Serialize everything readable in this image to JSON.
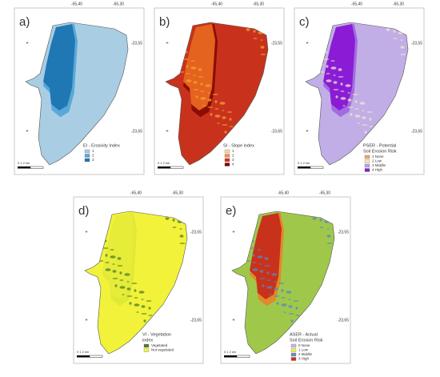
{
  "panels": [
    {
      "label": "a)",
      "top_coords": [
        "-65,40",
        "-65,30"
      ],
      "right_coords": [
        "-23,55",
        "-23,65"
      ],
      "scale": "0  1  2 km",
      "legend": {
        "title": [
          "EI - Erosivity Index"
        ],
        "items": [
          {
            "label": "1",
            "color": "#a9cde3"
          },
          {
            "label": "2",
            "color": "#5aa8d8"
          },
          {
            "label": "3",
            "color": "#1f78b4"
          }
        ]
      },
      "base": "#a9cde3",
      "strip": "#1f78b4",
      "edge": "#5aa8d8",
      "speck": null
    },
    {
      "label": "b)",
      "top_coords": [
        "-65,40",
        "-65,30"
      ],
      "right_coords": [
        "-23,55",
        "-23,65"
      ],
      "scale": "0  1  2 km",
      "legend": {
        "title": [
          "SI - Slope index"
        ],
        "items": [
          {
            "label": "1",
            "color": "#fdd49e"
          },
          {
            "label": "2",
            "color": "#fc8d59"
          },
          {
            "label": "3",
            "color": "#d7301f"
          },
          {
            "label": "4",
            "color": "#7f0000"
          }
        ]
      },
      "base": "#c8321c",
      "strip": "#e4631f",
      "edge": "#8b0d05",
      "speck": "#f6a032"
    },
    {
      "label": "c)",
      "top_coords": [
        "-65,40",
        "-65,30"
      ],
      "right_coords": [
        "-23,55",
        "-23,65"
      ],
      "scale": "0  1  2 km",
      "legend": {
        "title": [
          "PSER - Potential",
          "Soil Erosion Risk"
        ],
        "items": [
          {
            "label": "1 None",
            "color": "#f4a460"
          },
          {
            "label": "2 Low",
            "color": "#f5e6c8"
          },
          {
            "label": "3 Middle",
            "color": "#b9a3e3"
          },
          {
            "label": "4 High",
            "color": "#8a1cd6"
          }
        ]
      },
      "base": "#c2aee6",
      "strip": "#8a1cd6",
      "edge": "#a36be0",
      "speck": "#f1e4cf"
    },
    {
      "label": "d)",
      "top_coords": [
        "-65,40",
        "-65,30"
      ],
      "right_coords": [
        "-23,55",
        "-23,65"
      ],
      "scale": "0  1  2 km",
      "legend": {
        "title": [
          "VI - Vegetation",
          "index"
        ],
        "items": [
          {
            "label": "Vegetated",
            "color": "#4e7d2a"
          },
          {
            "label": "Not vegetated",
            "color": "#f2f23a"
          }
        ]
      },
      "base": "#f2f23a",
      "strip": "#e6ec38",
      "edge": "#dfe936",
      "speck": "#4e7d2a"
    },
    {
      "label": "e)",
      "top_coords": [
        "-65,40",
        "-65,30"
      ],
      "right_coords": [
        "-23,55",
        "-23,65"
      ],
      "scale": "0  1  2 km",
      "legend": {
        "title": [
          "ASER - Actual",
          "Soil Erosion Risk"
        ],
        "items": [
          {
            "label": "0 None",
            "color": "#c4b8e6"
          },
          {
            "label": "1 Low",
            "color": "#f2f23a"
          },
          {
            "label": "2 Middle",
            "color": "#6a8fc4"
          },
          {
            "label": "3 High",
            "color": "#c8321c"
          }
        ]
      },
      "base": "#9fc84a",
      "strip": "#c8321c",
      "edge": "#e08a2a",
      "speck": "#5b84c4"
    }
  ]
}
